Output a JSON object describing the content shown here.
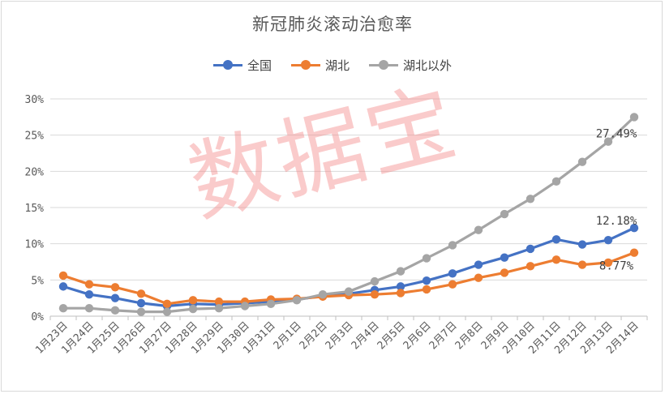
{
  "chart_data": {
    "type": "line",
    "title": "新冠肺炎滚动治愈率",
    "categories": [
      "1月23日",
      "1月24日",
      "1月25日",
      "1月26日",
      "1月27日",
      "1月28日",
      "1月29日",
      "1月30日",
      "1月31日",
      "2月1日",
      "2月2日",
      "2月3日",
      "2月4日",
      "2月5日",
      "2月6日",
      "2月7日",
      "2月8日",
      "2月9日",
      "2月10日",
      "2月11日",
      "2月12日",
      "2月13日",
      "2月14日"
    ],
    "y_ticks": [
      "0%",
      "5%",
      "10%",
      "15%",
      "20%",
      "25%",
      "30%"
    ],
    "ylim": [
      0,
      30
    ],
    "grid": true,
    "legend_position": "top",
    "series": [
      {
        "name": "全国",
        "color": "#4472C4",
        "values": [
          4.1,
          3.0,
          2.5,
          1.8,
          1.4,
          1.7,
          1.6,
          1.8,
          2.0,
          2.3,
          2.8,
          3.1,
          3.6,
          4.1,
          4.9,
          5.9,
          7.1,
          8.1,
          9.3,
          10.6,
          9.9,
          10.5,
          12.18
        ],
        "end_label": "12.18%"
      },
      {
        "name": "湖北",
        "color": "#ED7D31",
        "values": [
          5.6,
          4.4,
          4.0,
          3.1,
          1.7,
          2.2,
          2.0,
          2.0,
          2.3,
          2.4,
          2.7,
          2.9,
          3.0,
          3.2,
          3.7,
          4.4,
          5.3,
          6.0,
          6.9,
          7.8,
          7.1,
          7.4,
          8.77
        ],
        "end_label": "8.77%"
      },
      {
        "name": "湖北以外",
        "color": "#A5A5A5",
        "values": [
          1.1,
          1.1,
          0.8,
          0.6,
          0.6,
          1.0,
          1.1,
          1.4,
          1.7,
          2.2,
          3.0,
          3.4,
          4.8,
          6.2,
          8.0,
          9.8,
          11.9,
          14.1,
          16.2,
          18.6,
          21.3,
          24.1,
          27.49
        ],
        "end_label": "27.49%"
      }
    ]
  },
  "watermark": "数据宝"
}
